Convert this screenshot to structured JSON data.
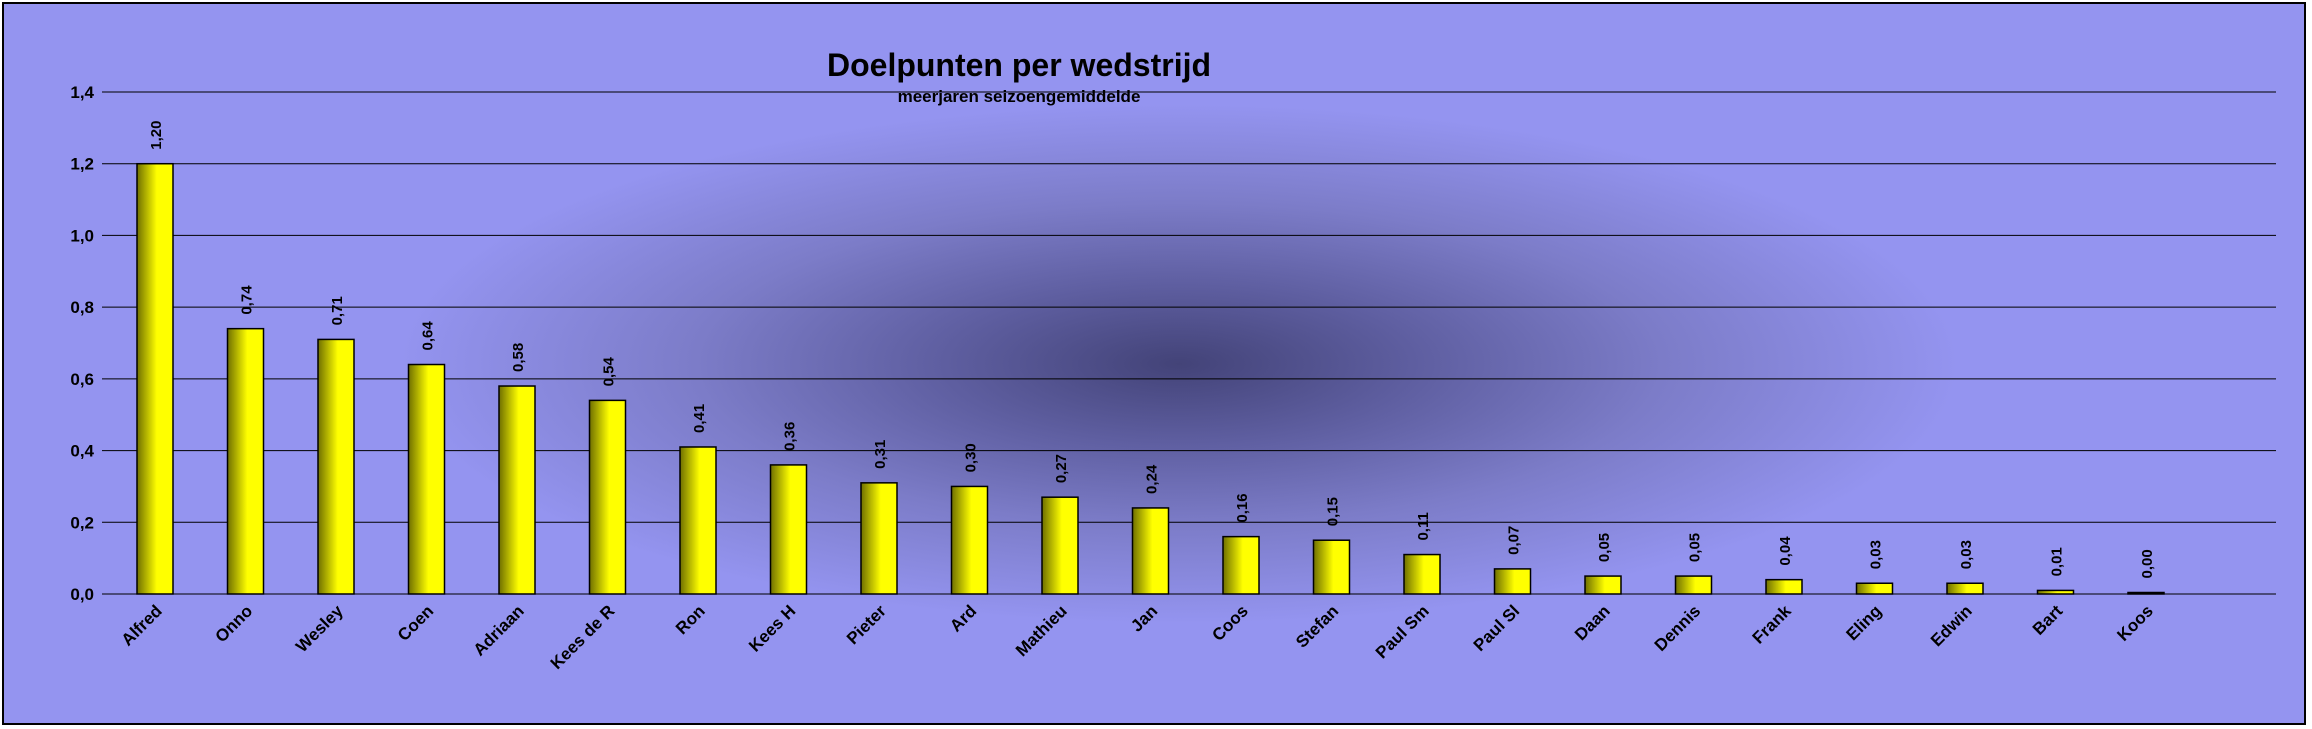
{
  "chart_data": {
    "type": "bar",
    "title": "Doelpunten per wedstrijd",
    "subtitle": "meerjaren seizoengemiddelde",
    "xlabel": "",
    "ylabel": "",
    "ylim": [
      0,
      1.4
    ],
    "yticks": [
      "0,0",
      "0,2",
      "0,4",
      "0,6",
      "0,8",
      "1,0",
      "1,2",
      "1,4"
    ],
    "grid": true,
    "legend": "none",
    "categories": [
      "Alfred",
      "Onno",
      "Wesley",
      "Coen",
      "Adriaan",
      "Kees de R",
      "Ron",
      "Kees H",
      "Pieter",
      "Ard",
      "Mathieu",
      "Jan",
      "Coos",
      "Stefan",
      "Paul Sm",
      "Paul Sl",
      "Daan",
      "Dennis",
      "Frank",
      "Eling",
      "Edwin",
      "Bart",
      "Koos"
    ],
    "values": [
      1.2,
      0.74,
      0.71,
      0.64,
      0.58,
      0.54,
      0.41,
      0.36,
      0.31,
      0.3,
      0.27,
      0.24,
      0.16,
      0.15,
      0.11,
      0.07,
      0.05,
      0.05,
      0.04,
      0.03,
      0.03,
      0.01,
      0.0
    ],
    "value_labels": [
      "1,20",
      "0,74",
      "0,71",
      "0,64",
      "0,58",
      "0,54",
      "0,41",
      "0,36",
      "0,31",
      "0,30",
      "0,27",
      "0,24",
      "0,16",
      "0,15",
      "0,11",
      "0,07",
      "0,05",
      "0,05",
      "0,04",
      "0,03",
      "0,03",
      "0,01",
      "0,00"
    ],
    "colors": {
      "bar": "#ffff00",
      "bar_shade": "#6f6f00",
      "bar_border": "#000000",
      "gridline": "#000000",
      "background_light": "#9494f0",
      "background_dark": "#434378"
    }
  }
}
